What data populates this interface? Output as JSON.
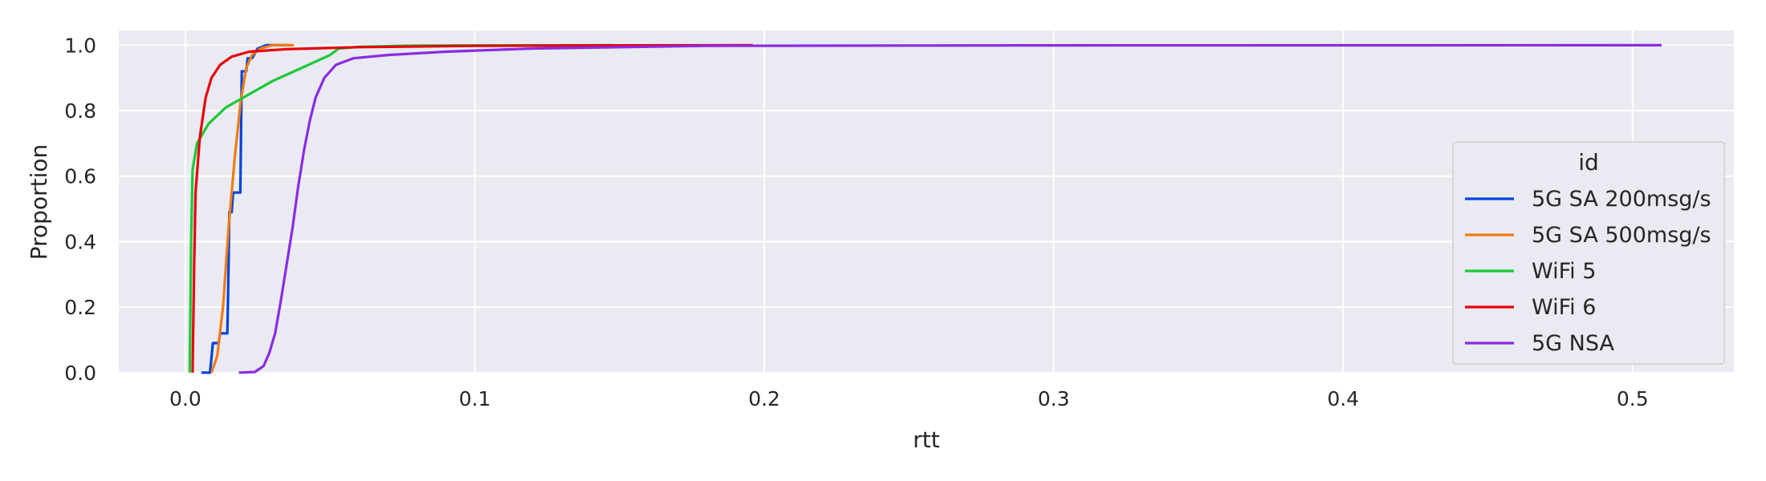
{
  "chart_data": {
    "type": "line",
    "title": "",
    "xlabel": "rtt",
    "ylabel": "Proportion",
    "xlim": [
      -0.023,
      0.535
    ],
    "ylim": [
      -0.003,
      1.045
    ],
    "x_ticks": [
      {
        "value": 0.0,
        "label": "0.0"
      },
      {
        "value": 0.1,
        "label": "0.1"
      },
      {
        "value": 0.2,
        "label": "0.2"
      },
      {
        "value": 0.3,
        "label": "0.3"
      },
      {
        "value": 0.4,
        "label": "0.4"
      },
      {
        "value": 0.5,
        "label": "0.5"
      }
    ],
    "y_ticks": [
      {
        "value": 0.0,
        "label": "0.0"
      },
      {
        "value": 0.2,
        "label": "0.2"
      },
      {
        "value": 0.4,
        "label": "0.4"
      },
      {
        "value": 0.6,
        "label": "0.6"
      },
      {
        "value": 0.8,
        "label": "0.8"
      },
      {
        "value": 1.0,
        "label": "1.0"
      }
    ],
    "grid": true,
    "background": "#eaeaf2",
    "legend": {
      "title": "id",
      "placement": "right"
    },
    "series": [
      {
        "name": "5G SA 200msg/s",
        "color": "#0043e0",
        "points": [
          [
            0.0055,
            0.0
          ],
          [
            0.0085,
            0.0
          ],
          [
            0.0095,
            0.09
          ],
          [
            0.0115,
            0.09
          ],
          [
            0.012,
            0.12
          ],
          [
            0.0145,
            0.12
          ],
          [
            0.0148,
            0.26
          ],
          [
            0.0152,
            0.49
          ],
          [
            0.016,
            0.49
          ],
          [
            0.0165,
            0.55
          ],
          [
            0.019,
            0.55
          ],
          [
            0.0195,
            0.92
          ],
          [
            0.021,
            0.92
          ],
          [
            0.0215,
            0.96
          ],
          [
            0.023,
            0.96
          ],
          [
            0.025,
            0.99
          ],
          [
            0.028,
            1.0
          ],
          [
            0.0355,
            1.0
          ]
        ]
      },
      {
        "name": "5G SA 500msg/s",
        "color": "#f07c12",
        "points": [
          [
            0.009,
            0.0
          ],
          [
            0.011,
            0.05
          ],
          [
            0.013,
            0.2
          ],
          [
            0.015,
            0.45
          ],
          [
            0.017,
            0.65
          ],
          [
            0.019,
            0.82
          ],
          [
            0.021,
            0.93
          ],
          [
            0.023,
            0.97
          ],
          [
            0.026,
            0.99
          ],
          [
            0.03,
            1.0
          ],
          [
            0.0375,
            1.0
          ]
        ]
      },
      {
        "name": "WiFi 5",
        "color": "#1ac938",
        "points": [
          [
            0.0015,
            0.0
          ],
          [
            0.002,
            0.4
          ],
          [
            0.0025,
            0.62
          ],
          [
            0.004,
            0.7
          ],
          [
            0.008,
            0.76
          ],
          [
            0.014,
            0.81
          ],
          [
            0.022,
            0.85
          ],
          [
            0.03,
            0.89
          ],
          [
            0.04,
            0.93
          ],
          [
            0.05,
            0.97
          ],
          [
            0.053,
            0.99
          ],
          [
            0.06,
            0.995
          ],
          [
            0.08,
            0.999
          ],
          [
            0.148,
            1.0
          ]
        ]
      },
      {
        "name": "WiFi 6",
        "color": "#e8000b",
        "points": [
          [
            0.0025,
            0.0
          ],
          [
            0.003,
            0.3
          ],
          [
            0.0035,
            0.55
          ],
          [
            0.005,
            0.72
          ],
          [
            0.007,
            0.84
          ],
          [
            0.009,
            0.9
          ],
          [
            0.012,
            0.94
          ],
          [
            0.016,
            0.965
          ],
          [
            0.022,
            0.98
          ],
          [
            0.035,
            0.988
          ],
          [
            0.06,
            0.994
          ],
          [
            0.1,
            0.998
          ],
          [
            0.15,
            0.9995
          ],
          [
            0.196,
            1.0
          ]
        ]
      },
      {
        "name": "5G NSA",
        "color": "#8b2be2",
        "points": [
          [
            0.0185,
            0.0
          ],
          [
            0.024,
            0.002
          ],
          [
            0.027,
            0.02
          ],
          [
            0.029,
            0.06
          ],
          [
            0.031,
            0.12
          ],
          [
            0.033,
            0.22
          ],
          [
            0.035,
            0.33
          ],
          [
            0.037,
            0.44
          ],
          [
            0.039,
            0.57
          ],
          [
            0.041,
            0.68
          ],
          [
            0.043,
            0.77
          ],
          [
            0.045,
            0.84
          ],
          [
            0.048,
            0.9
          ],
          [
            0.052,
            0.94
          ],
          [
            0.058,
            0.96
          ],
          [
            0.07,
            0.97
          ],
          [
            0.09,
            0.98
          ],
          [
            0.12,
            0.99
          ],
          [
            0.18,
            0.998
          ],
          [
            0.3,
            0.9995
          ],
          [
            0.51,
            1.0
          ]
        ]
      }
    ]
  }
}
